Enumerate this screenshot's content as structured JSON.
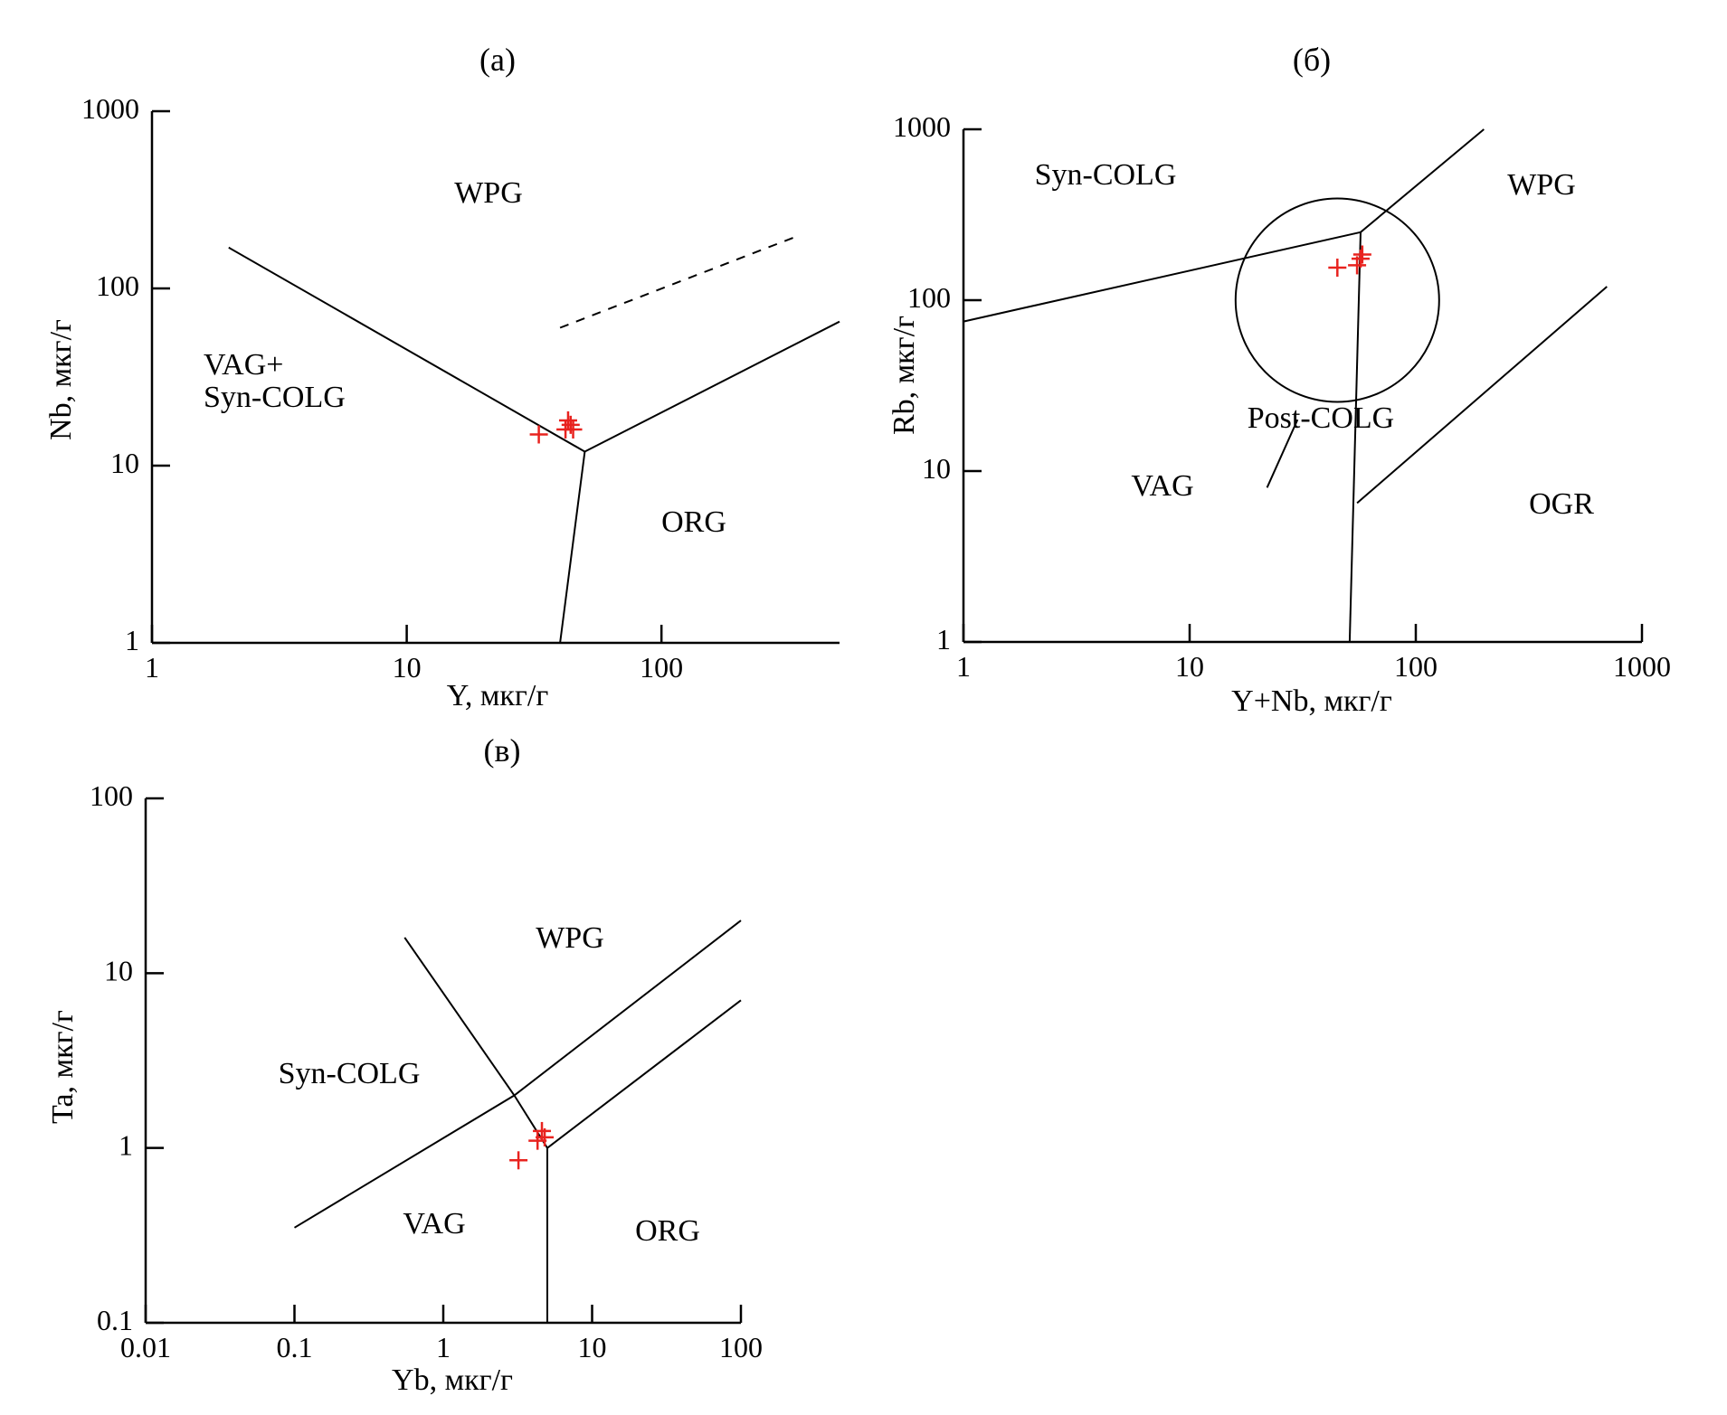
{
  "chart_data": [
    {
      "type": "scatter",
      "panel_label": "(а)",
      "xlabel": "Y, мкг/г",
      "ylabel": "Nb, мкг/г",
      "xscale": "log",
      "yscale": "log",
      "xlim": [
        1,
        500
      ],
      "ylim": [
        1,
        1000
      ],
      "xticks": [
        "1",
        "10",
        "100"
      ],
      "yticks": [
        "1",
        "10",
        "100",
        "1000"
      ],
      "region_labels": [
        "WPG",
        "VAG+",
        "Syn-COLG",
        "ORG"
      ],
      "boundaries": [
        {
          "style": "solid",
          "points": [
            [
              2,
              170
            ],
            [
              50,
              12
            ],
            [
              40,
              1
            ]
          ]
        },
        {
          "style": "solid",
          "points": [
            [
              50,
              12
            ],
            [
              500,
              65
            ]
          ]
        },
        {
          "style": "dashed",
          "points": [
            [
              40,
              60
            ],
            [
              350,
              200
            ]
          ]
        }
      ],
      "marker": "+",
      "marker_color": "#e8231f",
      "points": [
        [
          33,
          15
        ],
        [
          42,
          16
        ],
        [
          43,
          18
        ],
        [
          44,
          17
        ],
        [
          45,
          16
        ]
      ]
    },
    {
      "type": "scatter",
      "panel_label": "(б)",
      "xlabel": "Y+Nb, мкг/г",
      "ylabel": "Rb, мкг/г",
      "xscale": "log",
      "yscale": "log",
      "xlim": [
        1,
        1000
      ],
      "ylim": [
        1,
        1000
      ],
      "xticks": [
        "1",
        "10",
        "100",
        "1000"
      ],
      "yticks": [
        "1",
        "10",
        "100",
        "1000"
      ],
      "region_labels": [
        "Syn-COLG",
        "WPG",
        "Post-COLG",
        "VAG",
        "OGR"
      ],
      "boundaries": [
        {
          "style": "solid",
          "points": [
            [
              1,
              75
            ],
            [
              57,
              250
            ]
          ]
        },
        {
          "style": "solid",
          "points": [
            [
              57,
              250
            ],
            [
              200,
              1000
            ]
          ]
        },
        {
          "style": "solid",
          "points": [
            [
              57,
              250
            ],
            [
              51,
              1
            ]
          ]
        },
        {
          "style": "solid",
          "points": [
            [
              55,
              6.5
            ],
            [
              700,
              120
            ]
          ]
        },
        {
          "style": "solid",
          "shape": "circle",
          "center": [
            45,
            100
          ],
          "log_radius": 0.45
        },
        {
          "style": "solid",
          "shape": "pointer",
          "points": [
            [
              30,
              20
            ],
            [
              22,
              8
            ]
          ]
        }
      ],
      "marker": "+",
      "marker_color": "#e8231f",
      "points": [
        [
          45,
          155
        ],
        [
          55,
          160
        ],
        [
          57,
          175
        ],
        [
          58,
          185
        ]
      ]
    },
    {
      "type": "scatter",
      "panel_label": "(в)",
      "xlabel": "Yb, мкг/г",
      "ylabel": "Ta, мкг/г",
      "xscale": "log",
      "yscale": "log",
      "xlim": [
        0.01,
        100
      ],
      "ylim": [
        0.1,
        100
      ],
      "xticks": [
        "0.01",
        "0.1",
        "1",
        "10",
        "100"
      ],
      "yticks": [
        "0.1",
        "1",
        "10",
        "100"
      ],
      "region_labels": [
        "WPG",
        "Syn-COLG",
        "VAG",
        "ORG"
      ],
      "boundaries": [
        {
          "style": "solid",
          "points": [
            [
              0.1,
              0.35
            ],
            [
              3,
              2
            ],
            [
              100,
              20
            ]
          ]
        },
        {
          "style": "solid",
          "points": [
            [
              0.55,
              16
            ],
            [
              3,
              2
            ],
            [
              5,
              1
            ]
          ]
        },
        {
          "style": "solid",
          "points": [
            [
              5,
              1
            ],
            [
              100,
              7
            ]
          ]
        },
        {
          "style": "solid",
          "points": [
            [
              5,
              1
            ],
            [
              5,
              0.1
            ]
          ]
        }
      ],
      "marker": "+",
      "marker_color": "#e8231f",
      "points": [
        [
          3.2,
          0.85
        ],
        [
          4.3,
          1.1
        ],
        [
          4.6,
          1.25
        ],
        [
          4.8,
          1.15
        ]
      ]
    }
  ]
}
